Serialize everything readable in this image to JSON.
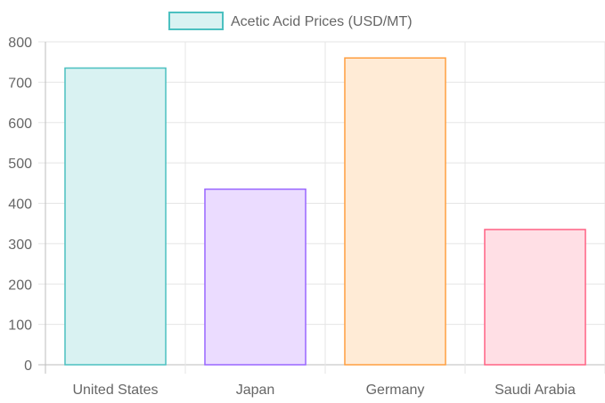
{
  "chart_data": {
    "type": "bar",
    "categories": [
      "United States",
      "Japan",
      "Germany",
      "Saudi Arabia"
    ],
    "series": [
      {
        "name": "Acetic Acid Prices (USD/MT)",
        "values": [
          735,
          435,
          760,
          335
        ]
      }
    ],
    "bar_fill_colors": [
      "#d9f2f2",
      "#ebdcff",
      "#ffebd6",
      "#ffdfe5"
    ],
    "bar_border_colors": [
      "#4bc0c0",
      "#9966ff",
      "#ff9f40",
      "#ff6384"
    ],
    "legend_fill_color": "#d9f2f2",
    "legend_border_color": "#4bc0c0",
    "legend_position": "top",
    "ylim": [
      0,
      800
    ],
    "yticks": [
      0,
      100,
      200,
      300,
      400,
      500,
      600,
      700,
      800
    ],
    "grid": true,
    "title": "",
    "xlabel": "",
    "ylabel": ""
  }
}
